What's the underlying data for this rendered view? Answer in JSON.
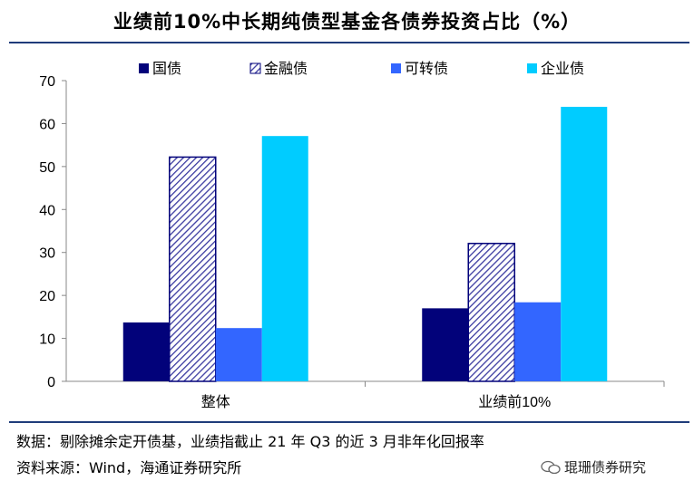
{
  "title": "业绩前10%中长期纯债型基金各债券投资占比（%）",
  "notes": {
    "line1": "数据：剔除摊余定开债基，业绩指截止 21 年 Q3 的近 3 月非年化回报率",
    "line2": "资料来源：Wind，海通证券研究所"
  },
  "watermark": "琨珊债券研究",
  "colors": {
    "国债": "#02027a",
    "金融债": "#3a3aa0",
    "可转债": "#3366ff",
    "企业业": "#00ccff",
    "rule": "#1f3c7a"
  },
  "chart_data": {
    "type": "bar",
    "categories": [
      "整体",
      "业绩前10%"
    ],
    "series": [
      {
        "name": "国债",
        "values": [
          13.7,
          17.0
        ],
        "color": "#02027a",
        "pattern": "solid"
      },
      {
        "name": "金融债",
        "values": [
          52.2,
          32.1
        ],
        "color": "#3a3aa0",
        "pattern": "hatch"
      },
      {
        "name": "可转债",
        "values": [
          12.4,
          18.4
        ],
        "color": "#3366ff",
        "pattern": "solid"
      },
      {
        "name": "企业债",
        "values": [
          57.1,
          63.9
        ],
        "color": "#00ccff",
        "pattern": "solid"
      }
    ],
    "ylim": [
      0,
      70
    ],
    "yticks": [
      0,
      10,
      20,
      30,
      40,
      50,
      60,
      70
    ],
    "legend": "top",
    "grid": false
  }
}
